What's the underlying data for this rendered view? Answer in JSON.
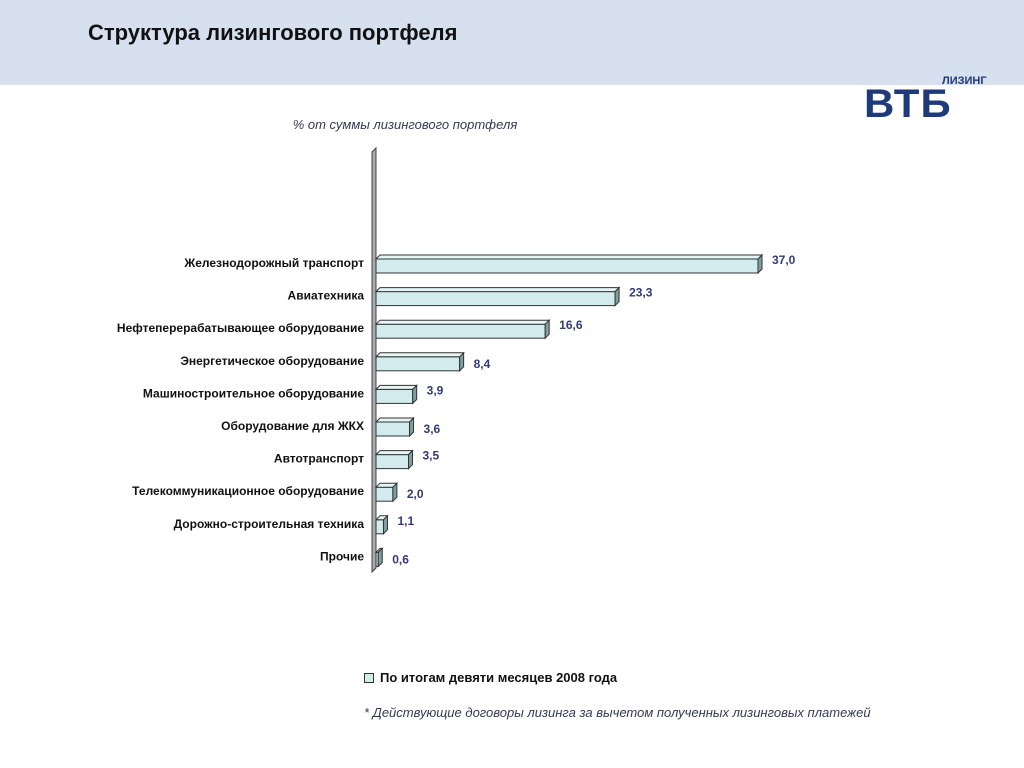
{
  "header": {
    "title": "Структура лизингового портфеля",
    "logo": {
      "main": "ВТБ",
      "sub": "ЛИЗИНГ",
      "color": "#1f3a78"
    },
    "band_color": "#d6e0ee"
  },
  "chart_data": {
    "type": "bar",
    "orientation": "horizontal",
    "style": "3d",
    "title": "% от суммы лизингового портфеля",
    "categories": [
      "Железнодорожный транспорт",
      "Авиатехника",
      "Нефтеперерабатывающее оборудование",
      "Энергетическое оборудование",
      "Машиностроительное оборудование",
      "Оборудование для ЖКХ",
      "Автотранспорт",
      "Телекоммуникационное оборудование",
      "Дорожно-строительная техника",
      "Прочие"
    ],
    "series": [
      {
        "name": "По итогам девяти месяцев 2008 года",
        "values": [
          37.0,
          23.3,
          16.6,
          8.4,
          3.9,
          3.6,
          3.5,
          2.0,
          1.1,
          0.6
        ],
        "value_labels": [
          "37,0",
          "23,3",
          "16,6",
          "8,4",
          "3,9",
          "3,6",
          "3,5",
          "2,0",
          "1,1",
          "0,6"
        ],
        "color": "#d2ebed"
      }
    ],
    "xlim": [
      0,
      37.0
    ],
    "grid": false,
    "legend_position": "bottom"
  },
  "footnote": "* Действующие договоры лизинга за вычетом полученных лизинговых платежей"
}
